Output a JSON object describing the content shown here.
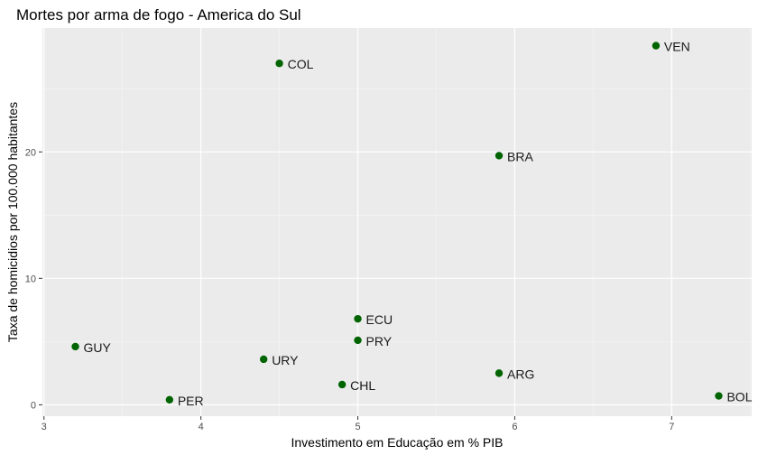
{
  "chart_data": {
    "type": "scatter",
    "title": "Mortes por arma de fogo - America do Sul",
    "xlabel": "Investimento em Educação em % PIB",
    "ylabel": "Taxa de homicidios por 100.000 habitantes",
    "xlim": [
      2.99,
      7.51
    ],
    "ylim": [
      -0.9,
      29.8
    ],
    "x_ticks": [
      "3",
      "4",
      "5",
      "6",
      "7"
    ],
    "y_ticks": [
      "0",
      "10",
      "20"
    ],
    "grid": true,
    "point_color": "#006400",
    "panel_background": "#ebebeb",
    "points": [
      {
        "label": "VEN",
        "x": 6.9,
        "y": 28.4
      },
      {
        "label": "COL",
        "x": 4.5,
        "y": 27.0
      },
      {
        "label": "BRA",
        "x": 5.9,
        "y": 19.7
      },
      {
        "label": "ECU",
        "x": 5.0,
        "y": 6.8
      },
      {
        "label": "PRY",
        "x": 5.0,
        "y": 5.1
      },
      {
        "label": "GUY",
        "x": 3.2,
        "y": 4.6
      },
      {
        "label": "URY",
        "x": 4.4,
        "y": 3.6
      },
      {
        "label": "ARG",
        "x": 5.9,
        "y": 2.5
      },
      {
        "label": "CHL",
        "x": 4.9,
        "y": 1.6
      },
      {
        "label": "BOL",
        "x": 7.3,
        "y": 0.7
      },
      {
        "label": "PER",
        "x": 3.8,
        "y": 0.4
      }
    ]
  }
}
